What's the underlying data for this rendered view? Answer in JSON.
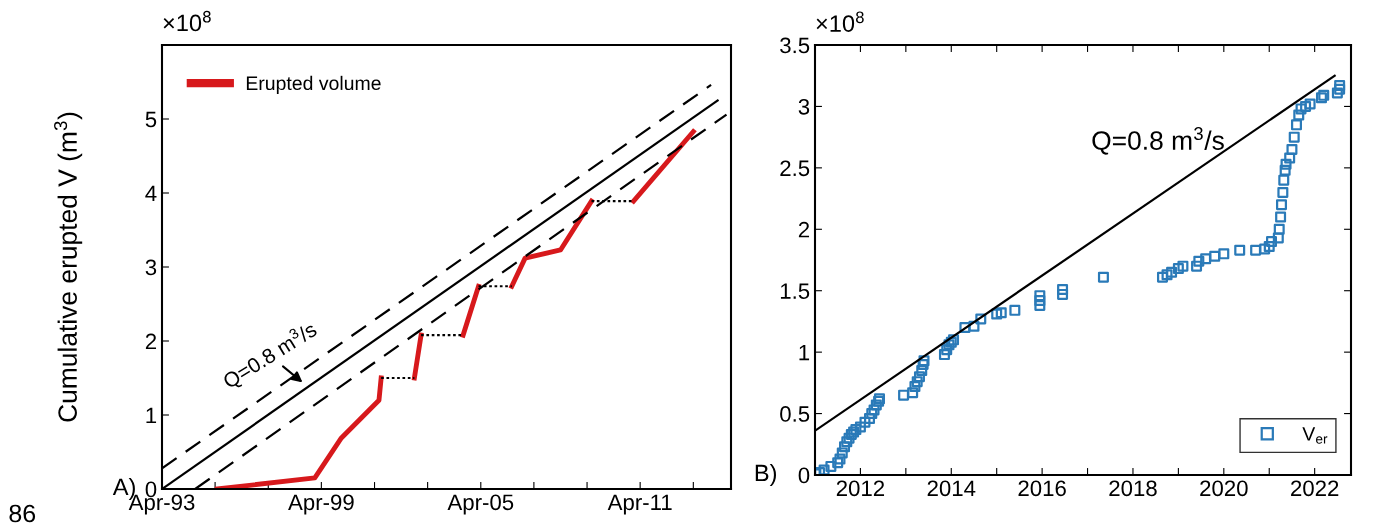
{
  "chart_data": [
    {
      "type": "line",
      "ylabel": "Cumulative erupted V (m$^{3}$)",
      "xlim": [
        "1993-04",
        "2014-09"
      ],
      "ylim": [
        0,
        6
      ],
      "xticks": [
        {
          "value": "1993-04",
          "label": "Apr-93"
        },
        {
          "value": "1995-04",
          "label": null
        },
        {
          "value": "1997-04",
          "label": null
        },
        {
          "value": "1999-04",
          "label": "Apr-99"
        },
        {
          "value": "2001-04",
          "label": null
        },
        {
          "value": "2003-04",
          "label": null
        },
        {
          "value": "2005-04",
          "label": "Apr-05"
        },
        {
          "value": "2007-04",
          "label": null
        },
        {
          "value": "2009-04",
          "label": null
        },
        {
          "value": "2011-04",
          "label": "Apr-11"
        },
        {
          "value": "2013-04",
          "label": null
        }
      ],
      "yticks": [
        0,
        1,
        2,
        3,
        4,
        5
      ],
      "grid": false,
      "legend": "top left",
      "annotations": [
        "Q=0.8 m$^{3}$/s",
        "A)",
        "×10$^{8}$",
        "86"
      ],
      "series": [
        {
          "name": "Erupted volume",
          "color": "#d7191c",
          "line_style": "solid",
          "x": [
            "1995-05",
            "1999-01",
            "2000-01",
            "2001-06",
            "2001-07",
            "2002-01",
            "2002-10",
            "2003-01",
            "2004-01",
            "2004-08",
            "2005-03",
            "2006-01",
            "2006-06",
            "2006-12",
            "2008-04",
            "2009-06",
            "2010-01",
            "2011-01",
            "2013-04"
          ],
          "values": [
            0,
            0.15,
            0.69,
            1.2,
            1.5,
            null,
            1.5,
            2.08,
            null,
            2.08,
            2.74,
            null,
            2.74,
            3.12,
            3.23,
            3.89,
            null,
            3.89,
            4.83
          ]
        },
        {
          "color": "#000000",
          "line_style": "dotted",
          "x": [
            "2001-07",
            "2002-10",
            "2002-11",
            "2003-01",
            "2004-08",
            "2004-11",
            "2005-03",
            "2006-06",
            "2007-12",
            "2009-06",
            "2011-01"
          ],
          "values": [
            1.5,
            1.5,
            null,
            2.08,
            2.08,
            null,
            2.74,
            2.74,
            null,
            3.89,
            3.89
          ]
        },
        {
          "color": "#000000",
          "line_style": "solid",
          "x": [
            "1993-04",
            "2014-03"
          ],
          "values": [
            0,
            5.25
          ]
        },
        {
          "color": "#000000",
          "line_style": "dashed",
          "x": [
            "1993-04",
            "2013-12"
          ],
          "values": [
            0.28,
            5.46
          ]
        },
        {
          "color": "#000000",
          "line_style": "dashed",
          "x": [
            "1994-07",
            "2014-07"
          ],
          "values": [
            0,
            5.06
          ]
        }
      ]
    },
    {
      "type": "scatter",
      "xlim": [
        2011,
        2022.8
      ],
      "ylim": [
        0,
        3.5
      ],
      "xticks": [
        {
          "value": 2011,
          "label": null
        },
        2012,
        {
          "value": 2013,
          "label": null
        },
        2014,
        {
          "value": 2015,
          "label": null
        },
        2016,
        {
          "value": 2017,
          "label": null
        },
        2018,
        {
          "value": 2019,
          "label": null
        },
        2020,
        {
          "value": 2021,
          "label": null
        },
        2022
      ],
      "yticks": [
        0,
        0.5,
        1,
        1.5,
        2,
        2.5,
        3,
        3.5
      ],
      "grid": false,
      "legend": "bottom right",
      "annotations": [
        "Q=0.8 m$^{3}$/s",
        "B)",
        "×10$^{8}$"
      ],
      "series": [
        {
          "name": "V$_{er}$",
          "type": "scatter",
          "marker": "square",
          "color": "#2a7ab8",
          "x": [
            2011.02,
            2011.1,
            2011.2,
            2011.35,
            2011.5,
            2011.55,
            2011.6,
            2011.65,
            2011.7,
            2011.75,
            2011.8,
            2011.85,
            2011.9,
            2012.0,
            2012.1,
            2012.2,
            2012.25,
            2012.3,
            2012.35,
            2012.4,
            2012.42,
            2012.95,
            2013.15,
            2013.2,
            2013.25,
            2013.3,
            2013.35,
            2013.38,
            2013.4,
            2013.85,
            2013.9,
            2013.95,
            2014.0,
            2014.05,
            2014.3,
            2014.5,
            2014.65,
            2015.0,
            2015.1,
            2015.4,
            2015.95,
            2015.95,
            2015.95,
            2016.45,
            2016.45,
            2017.35,
            2018.65,
            2018.75,
            2018.85,
            2019.0,
            2019.1,
            2019.4,
            2019.45,
            2019.6,
            2019.8,
            2020.0,
            2020.35,
            2020.7,
            2020.9,
            2021.0,
            2021.05,
            2021.2,
            2021.22,
            2021.25,
            2021.27,
            2021.3,
            2021.32,
            2021.35,
            2021.37,
            2021.45,
            2021.5,
            2021.55,
            2021.6,
            2021.65,
            2021.7,
            2021.8,
            2021.9,
            2022.15,
            2022.2,
            2022.5,
            2022.55,
            2022.55
          ],
          "values": [
            0.01,
            0.02,
            0.04,
            0.07,
            0.1,
            0.13,
            0.18,
            0.23,
            0.27,
            0.3,
            0.33,
            0.35,
            0.37,
            0.39,
            0.43,
            0.46,
            0.5,
            0.53,
            0.57,
            0.6,
            0.62,
            0.65,
            0.67,
            0.72,
            0.76,
            0.8,
            0.85,
            0.9,
            0.93,
            0.98,
            1.02,
            1.06,
            1.08,
            1.1,
            1.2,
            1.21,
            1.27,
            1.31,
            1.32,
            1.34,
            1.38,
            1.42,
            1.46,
            1.47,
            1.51,
            1.61,
            1.61,
            1.63,
            1.65,
            1.68,
            1.7,
            1.7,
            1.74,
            1.76,
            1.78,
            1.8,
            1.83,
            1.83,
            1.84,
            1.86,
            1.9,
            1.93,
            2.0,
            2.1,
            2.2,
            2.3,
            2.4,
            2.48,
            2.53,
            2.58,
            2.65,
            2.75,
            2.85,
            2.93,
            2.98,
            3.0,
            3.02,
            3.07,
            3.09,
            3.11,
            3.14,
            3.17
          ]
        },
        {
          "type": "line",
          "color": "#000000",
          "line_style": "solid",
          "x": [
            2011.0,
            2022.44
          ],
          "values": [
            0.36,
            3.25
          ]
        }
      ]
    }
  ]
}
